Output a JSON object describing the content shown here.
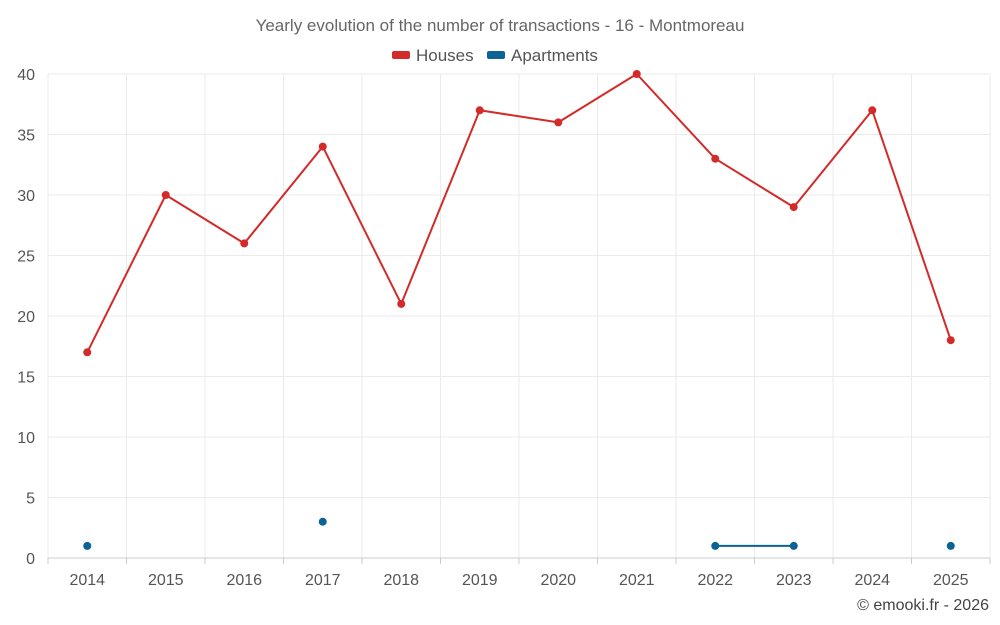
{
  "chart_data": {
    "type": "line",
    "title": "Yearly evolution of the number of transactions - 16 - Montmoreau",
    "categories": [
      "2014",
      "2015",
      "2016",
      "2017",
      "2018",
      "2019",
      "2020",
      "2021",
      "2022",
      "2023",
      "2024",
      "2025"
    ],
    "ylim": [
      0,
      40
    ],
    "yticks": [
      0,
      5,
      10,
      15,
      20,
      25,
      30,
      35,
      40
    ],
    "grid": true,
    "legend_position": "top-center",
    "series": [
      {
        "name": "Houses",
        "color": "#d32a2a",
        "values": [
          17,
          30,
          26,
          34,
          21,
          37,
          36,
          40,
          33,
          29,
          37,
          18
        ]
      },
      {
        "name": "Apartments",
        "color": "#0a6296",
        "values": [
          1,
          null,
          null,
          3,
          null,
          null,
          null,
          null,
          1,
          1,
          null,
          1
        ]
      }
    ]
  },
  "credit": "© emooki.fr - 2026"
}
